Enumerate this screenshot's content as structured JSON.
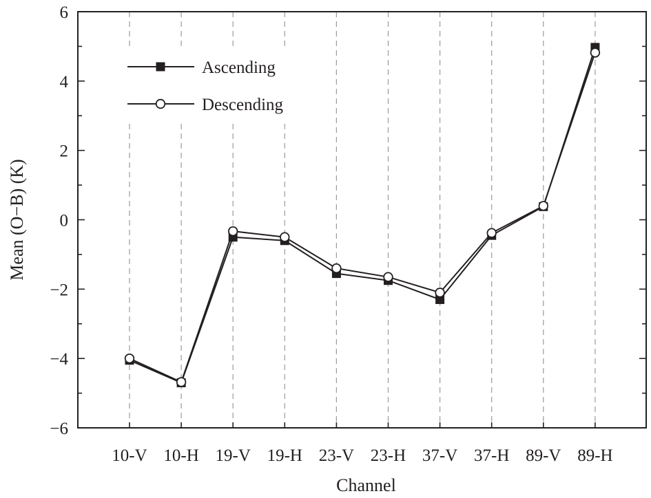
{
  "chart_data": {
    "type": "line",
    "title": "",
    "xlabel": "Channel",
    "ylabel": "Mean (O−B) (K)",
    "categories": [
      "10-V",
      "10-H",
      "19-V",
      "19-H",
      "23-V",
      "23-H",
      "37-V",
      "37-H",
      "89-V",
      "89-H"
    ],
    "ylim": [
      -6,
      6
    ],
    "yticks": [
      -6,
      -4,
      -2,
      0,
      2,
      4,
      6
    ],
    "ytick_labels": [
      "−6",
      "−4",
      "−2",
      "0",
      "2",
      "4",
      "6"
    ],
    "grid": "vertical dashed at each category",
    "legend_position": "top-left",
    "series": [
      {
        "name": "Ascending",
        "marker": "filled-square",
        "color": "#231f20",
        "values": [
          -4.05,
          -4.7,
          -0.5,
          -0.6,
          -1.55,
          -1.75,
          -2.3,
          -0.45,
          0.38,
          4.97
        ]
      },
      {
        "name": "Descending",
        "marker": "open-circle",
        "color": "#231f20",
        "values": [
          -4.0,
          -4.68,
          -0.33,
          -0.5,
          -1.4,
          -1.65,
          -2.1,
          -0.38,
          0.4,
          4.82
        ]
      }
    ]
  }
}
